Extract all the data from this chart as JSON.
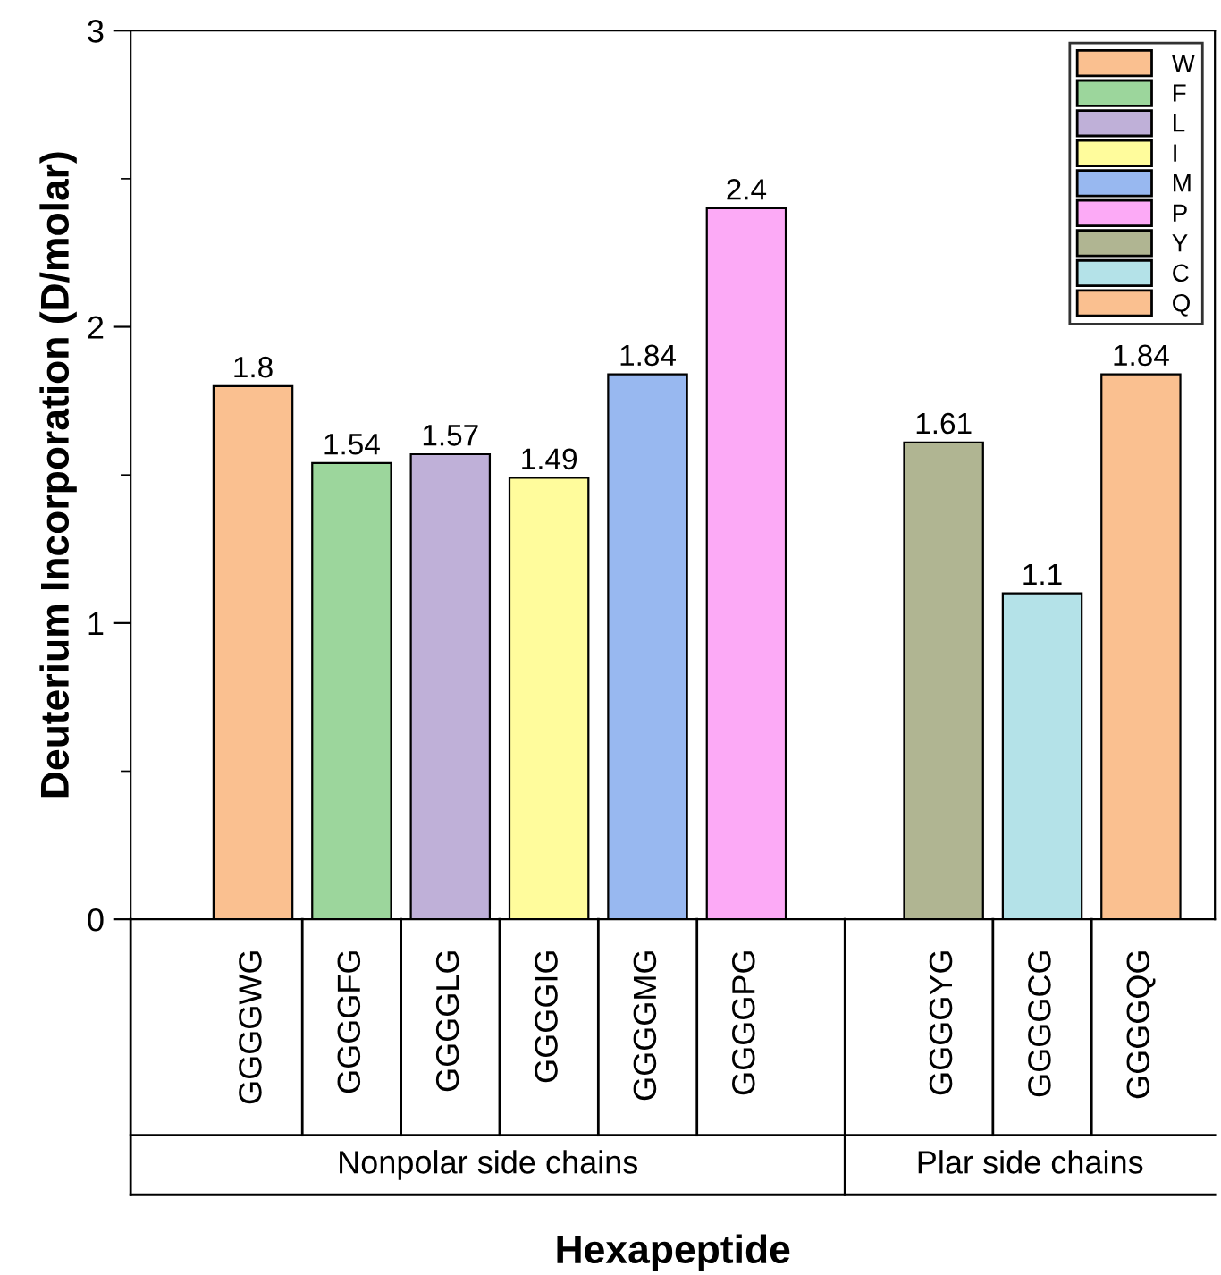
{
  "chart_data": {
    "type": "bar",
    "xlabel": "Hexapeptide",
    "ylabel": "Deuterium Incorporation (D/molar)",
    "categories": [
      "GGGGWG",
      "GGGGFG",
      "GGGGLG",
      "GGGGIG",
      "GGGGMG",
      "GGGGPG",
      null,
      "GGGGYG",
      "GGGGCG",
      "GGGGQG"
    ],
    "series": [
      {
        "name": "W",
        "color": "#fac090",
        "values": [
          1.8,
          null,
          null,
          null,
          null,
          null,
          null,
          null,
          null,
          null
        ]
      },
      {
        "name": "F",
        "color": "#9cd69c",
        "values": [
          null,
          1.54,
          null,
          null,
          null,
          null,
          null,
          null,
          null,
          null
        ]
      },
      {
        "name": "L",
        "color": "#bfb0d8",
        "values": [
          null,
          null,
          1.57,
          null,
          null,
          null,
          null,
          null,
          null,
          null
        ]
      },
      {
        "name": "I",
        "color": "#fffc9c",
        "values": [
          null,
          null,
          null,
          1.49,
          null,
          null,
          null,
          null,
          null,
          null
        ]
      },
      {
        "name": "M",
        "color": "#98b8f0",
        "values": [
          null,
          null,
          null,
          null,
          1.84,
          null,
          null,
          null,
          null,
          null
        ]
      },
      {
        "name": "P",
        "color": "#fcaaf6",
        "values": [
          null,
          null,
          null,
          null,
          null,
          2.4,
          null,
          null,
          null,
          null
        ]
      },
      {
        "name": "Y",
        "color": "#b0b592",
        "values": [
          null,
          null,
          null,
          null,
          null,
          null,
          null,
          1.61,
          null,
          null
        ]
      },
      {
        "name": "C",
        "color": "#b4e2e8",
        "values": [
          null,
          null,
          null,
          null,
          null,
          null,
          null,
          null,
          1.1,
          null
        ]
      },
      {
        "name": "Q",
        "color": "#fac090",
        "values": [
          null,
          null,
          null,
          null,
          null,
          null,
          null,
          null,
          null,
          1.84
        ]
      }
    ],
    "annotations": [
      "Nonpolar side chains",
      "Plar side chains"
    ],
    "ylim": [
      0,
      3
    ],
    "yticks": [
      0,
      1,
      2,
      3
    ],
    "data_labels": true,
    "legend": "top right",
    "grid": false
  }
}
